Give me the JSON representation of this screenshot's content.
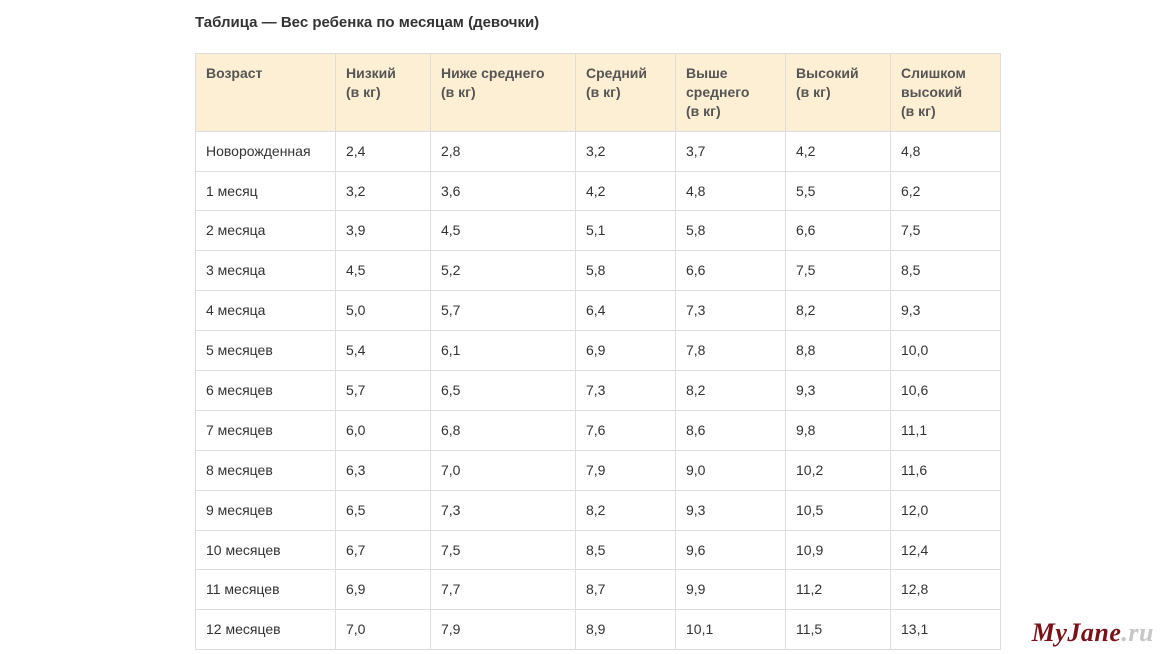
{
  "title": "Таблица — Вес ребенка по месяцам (девочки)",
  "table": {
    "columns": [
      {
        "label": "Возраст",
        "width_class": "c0"
      },
      {
        "label": "Низкий\n(в кг)",
        "width_class": "c1"
      },
      {
        "label": "Ниже среднего\n(в кг)",
        "width_class": "c2"
      },
      {
        "label": "Средний\n(в кг)",
        "width_class": "c3"
      },
      {
        "label": "Выше среднего\n(в кг)",
        "width_class": "c4"
      },
      {
        "label": "Высокий\n(в кг)",
        "width_class": "c5"
      },
      {
        "label": "Слишком высокий\n(в кг)",
        "width_class": "c6"
      }
    ],
    "rows": [
      [
        "Новорожденная",
        "2,4",
        "2,8",
        "3,2",
        "3,7",
        "4,2",
        "4,8"
      ],
      [
        "1 месяц",
        "3,2",
        "3,6",
        "4,2",
        "4,8",
        "5,5",
        "6,2"
      ],
      [
        "2 месяца",
        "3,9",
        "4,5",
        "5,1",
        "5,8",
        "6,6",
        "7,5"
      ],
      [
        "3 месяца",
        "4,5",
        "5,2",
        "5,8",
        "6,6",
        "7,5",
        "8,5"
      ],
      [
        "4 месяца",
        "5,0",
        "5,7",
        "6,4",
        "7,3",
        "8,2",
        "9,3"
      ],
      [
        "5 месяцев",
        "5,4",
        "6,1",
        "6,9",
        "7,8",
        "8,8",
        "10,0"
      ],
      [
        "6 месяцев",
        "5,7",
        "6,5",
        "7,3",
        "8,2",
        "9,3",
        "10,6"
      ],
      [
        "7 месяцев",
        "6,0",
        "6,8",
        "7,6",
        "8,6",
        "9,8",
        "11,1"
      ],
      [
        "8 месяцев",
        "6,3",
        "7,0",
        "7,9",
        "9,0",
        "10,2",
        "11,6"
      ],
      [
        "9 месяцев",
        "6,5",
        "7,3",
        "8,2",
        "9,3",
        "10,5",
        "12,0"
      ],
      [
        "10 месяцев",
        "6,7",
        "7,5",
        "8,5",
        "9,6",
        "10,9",
        "12,4"
      ],
      [
        "11 месяцев",
        "6,9",
        "7,7",
        "8,7",
        "9,9",
        "11,2",
        "12,8"
      ],
      [
        "12 месяцев",
        "7,0",
        "7,9",
        "8,9",
        "10,1",
        "11,5",
        "13,1"
      ]
    ],
    "header_bg": "#fdefd4",
    "border_color": "#dddddd",
    "font_size": 14,
    "title_font_size": 15,
    "title_color": "#333333",
    "text_color": "#333333"
  },
  "watermark": {
    "left": "MyJane",
    "right": ".ru",
    "left_color": "#7a1218",
    "right_color": "#c7c7c7"
  }
}
